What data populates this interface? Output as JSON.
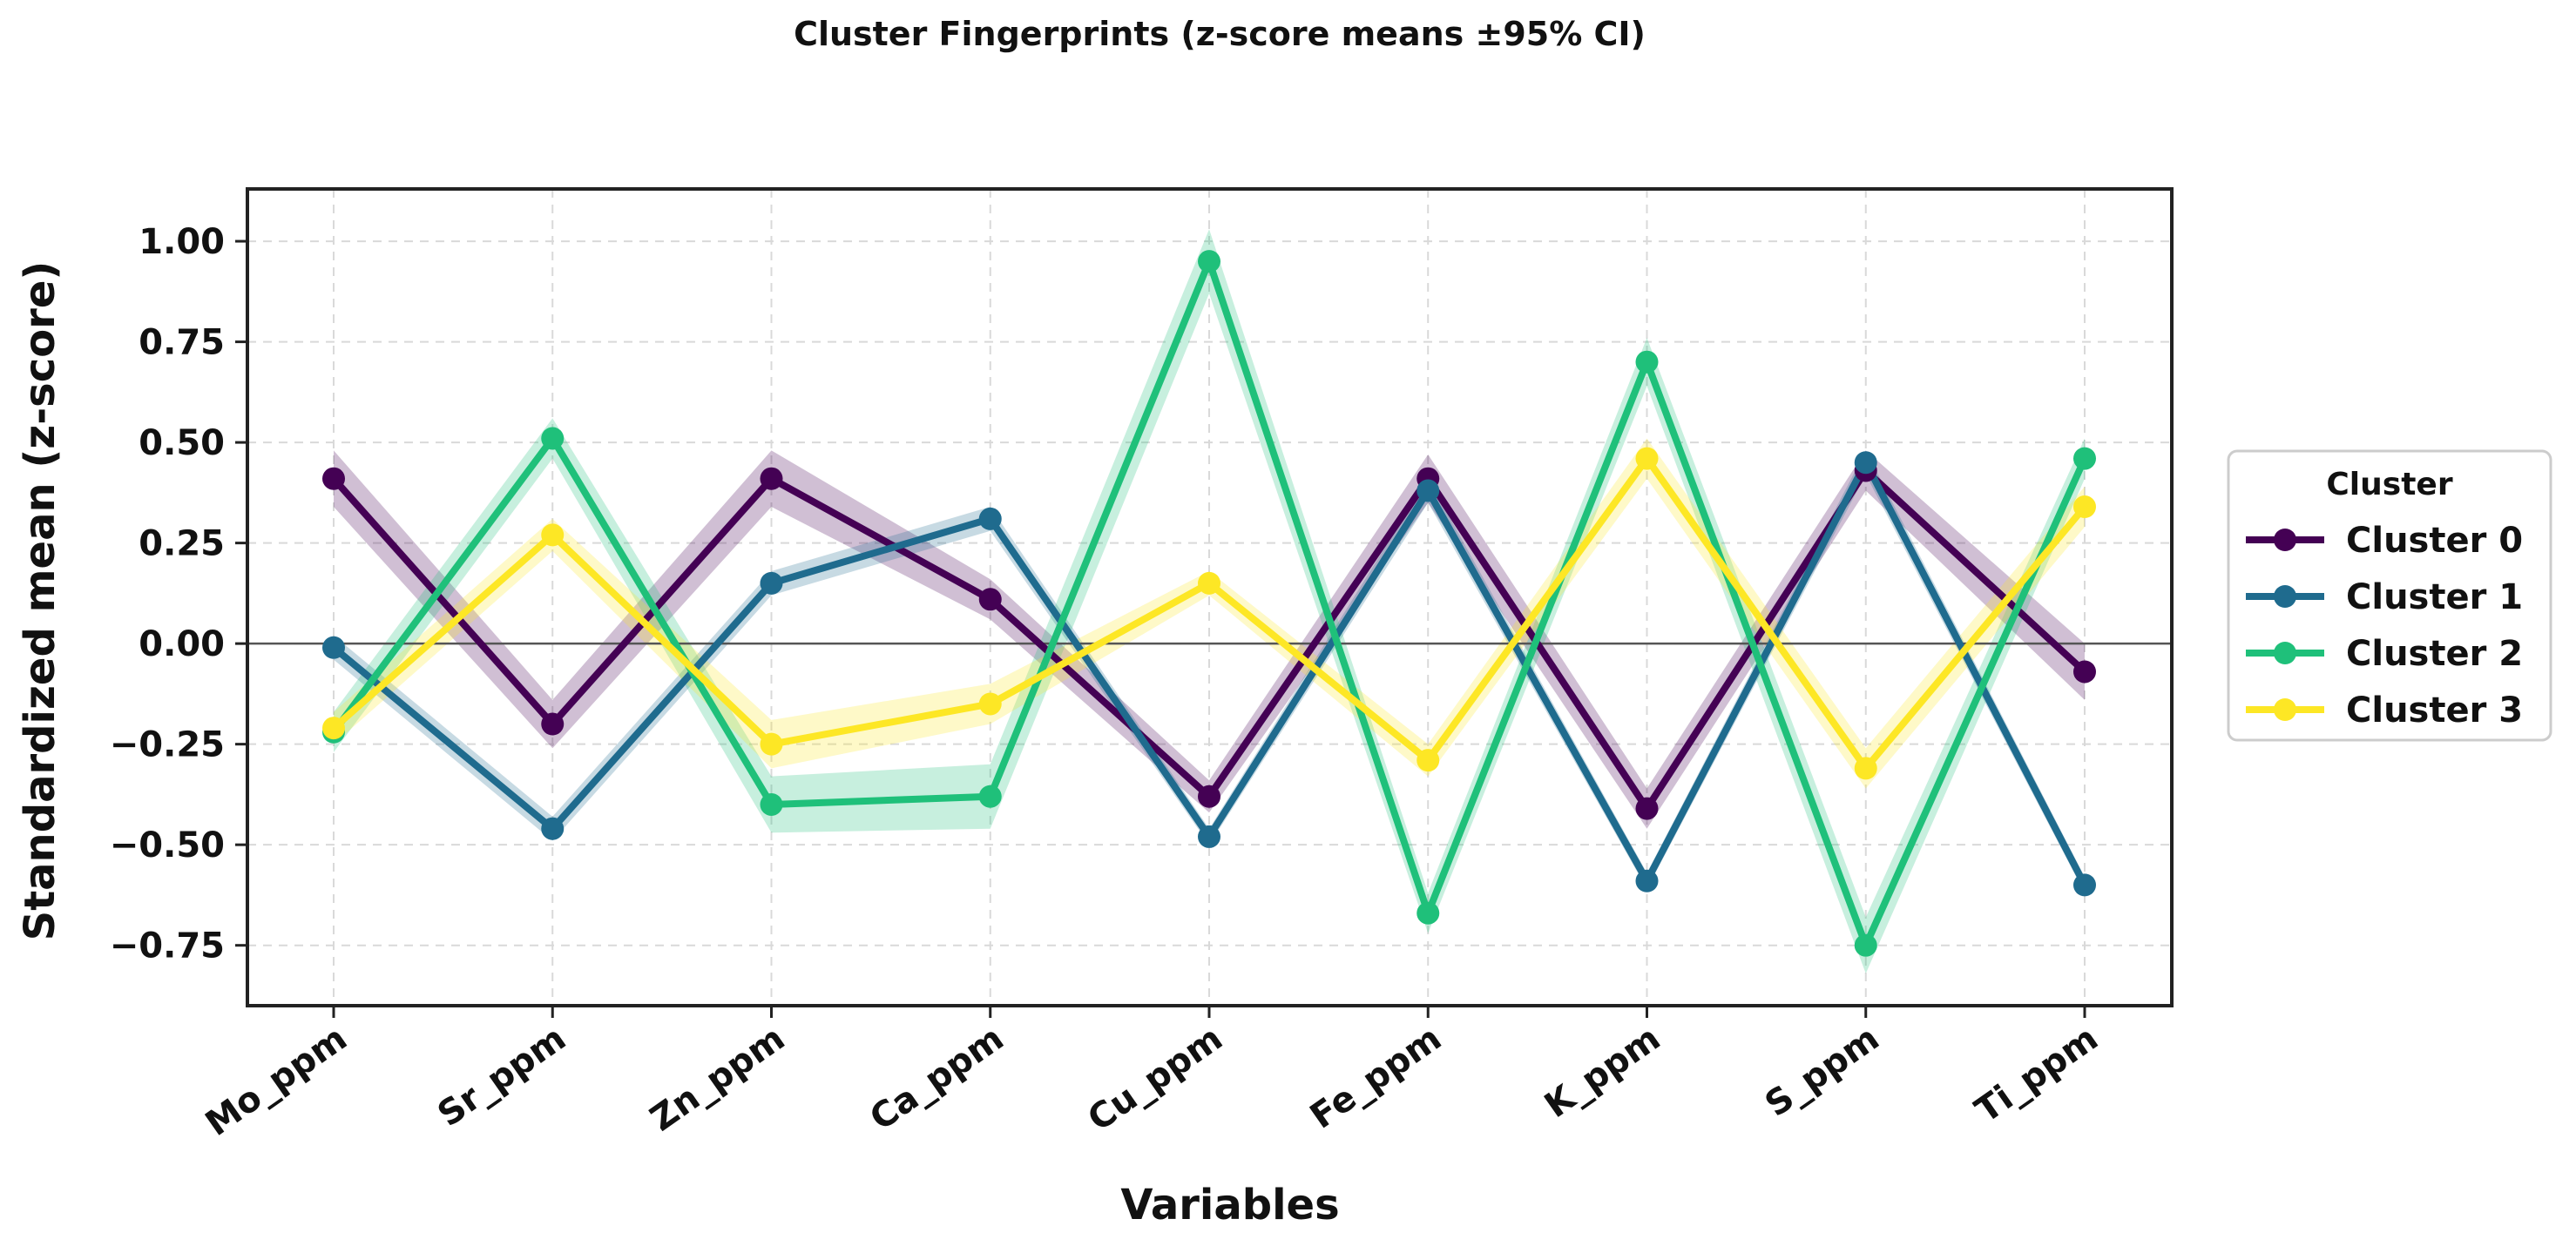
{
  "chart_data": {
    "type": "line",
    "title": "Cluster Fingerprints (z-score means ±95% CI)",
    "xlabel": "Variables",
    "ylabel": "Standardized mean (z-score)",
    "categories": [
      "Mo_ppm",
      "Sr_ppm",
      "Zn_ppm",
      "Ca_ppm",
      "Cu_ppm",
      "Fe_ppm",
      "K_ppm",
      "S_ppm",
      "Ti_ppm"
    ],
    "yticks": [
      "−0.75",
      "−0.50",
      "−0.25",
      "0.00",
      "0.25",
      "0.50",
      "0.75",
      "1.00"
    ],
    "ytick_values": [
      -0.75,
      -0.5,
      -0.25,
      0.0,
      0.25,
      0.5,
      0.75,
      1.0
    ],
    "ylim": [
      -0.9,
      1.13
    ],
    "grid": true,
    "zero_line": true,
    "legend": {
      "title": "Cluster",
      "placement": "right"
    },
    "series": [
      {
        "name": "Cluster 0",
        "color": "#440154",
        "values": [
          0.41,
          -0.2,
          0.41,
          0.11,
          -0.38,
          0.41,
          -0.41,
          0.43,
          -0.07
        ],
        "ci": [
          0.07,
          0.06,
          0.07,
          0.05,
          0.04,
          0.06,
          0.05,
          0.05,
          0.07
        ]
      },
      {
        "name": "Cluster 1",
        "color": "#1f6b8e",
        "values": [
          -0.01,
          -0.46,
          0.15,
          0.31,
          -0.48,
          0.38,
          -0.59,
          0.45,
          -0.6
        ],
        "ci": [
          0.03,
          0.03,
          0.03,
          0.03,
          0.02,
          0.03,
          0.02,
          0.03,
          0.02
        ]
      },
      {
        "name": "Cluster 2",
        "color": "#1fc07a",
        "values": [
          -0.22,
          0.51,
          -0.4,
          -0.38,
          0.95,
          -0.67,
          0.7,
          -0.75,
          0.46
        ],
        "ci": [
          0.05,
          0.05,
          0.07,
          0.08,
          0.08,
          0.05,
          0.06,
          0.07,
          0.05
        ]
      },
      {
        "name": "Cluster 3",
        "color": "#fde725",
        "values": [
          -0.21,
          0.27,
          -0.25,
          -0.15,
          0.15,
          -0.29,
          0.46,
          -0.31,
          0.34
        ],
        "ci": [
          0.04,
          0.04,
          0.06,
          0.05,
          0.03,
          0.04,
          0.05,
          0.05,
          0.05
        ]
      }
    ]
  }
}
